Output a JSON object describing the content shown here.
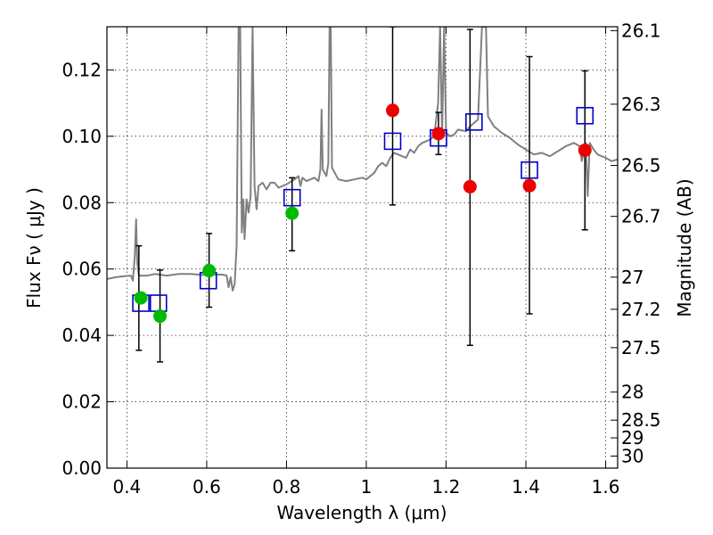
{
  "chart_data": {
    "type": "scatter",
    "title": "",
    "xlabel": "Wavelength  λ (μm)",
    "ylabel": "Flux  Fν  ( μJy )",
    "ylabel_right": "Magnitude (AB)",
    "xlim": [
      0.35,
      1.63
    ],
    "ylim": [
      0.0,
      0.133
    ],
    "grid": true,
    "x_ticks": [
      0.4,
      0.6,
      0.8,
      1.0,
      1.2,
      1.4,
      1.6
    ],
    "x_tick_labels": [
      "0.4",
      "0.6",
      "0.8",
      "1",
      "1.2",
      "1.4",
      "1.6"
    ],
    "y_ticks": [
      0.0,
      0.02,
      0.04,
      0.06,
      0.08,
      0.1,
      0.12
    ],
    "y_tick_labels": [
      "0.00",
      "0.02",
      "0.04",
      "0.06",
      "0.08",
      "0.10",
      "0.12"
    ],
    "right_ticks": [
      26.1,
      26.3,
      26.5,
      26.7,
      27,
      27.2,
      27.5,
      28,
      28.5,
      29,
      30
    ],
    "right_tick_labels": [
      "26.1",
      "26.3",
      "26.5",
      "26.7",
      "27",
      "27.2",
      "27.5",
      "28",
      "28.5",
      "29",
      "30"
    ],
    "colors": {
      "spectrum": "#808080",
      "observed_green": "#00bb00",
      "observed_red": "#ee0000",
      "model": "#0000cc",
      "errorbar": "#000000"
    },
    "series": [
      {
        "name": "model spectrum",
        "type": "line",
        "points": [
          [
            0.35,
            0.057
          ],
          [
            0.37,
            0.0575
          ],
          [
            0.39,
            0.0578
          ],
          [
            0.41,
            0.058
          ],
          [
            0.415,
            0.0565
          ],
          [
            0.42,
            0.064
          ],
          [
            0.423,
            0.075
          ],
          [
            0.426,
            0.062
          ],
          [
            0.43,
            0.058
          ],
          [
            0.45,
            0.058
          ],
          [
            0.47,
            0.0585
          ],
          [
            0.5,
            0.058
          ],
          [
            0.53,
            0.0585
          ],
          [
            0.56,
            0.0585
          ],
          [
            0.59,
            0.0582
          ],
          [
            0.6,
            0.0585
          ],
          [
            0.62,
            0.0583
          ],
          [
            0.64,
            0.0583
          ],
          [
            0.65,
            0.058
          ],
          [
            0.655,
            0.0545
          ],
          [
            0.66,
            0.0575
          ],
          [
            0.665,
            0.0535
          ],
          [
            0.67,
            0.0555
          ],
          [
            0.675,
            0.067
          ],
          [
            0.68,
            0.133
          ],
          [
            0.684,
            0.133
          ],
          [
            0.688,
            0.071
          ],
          [
            0.692,
            0.081
          ],
          [
            0.695,
            0.069
          ],
          [
            0.7,
            0.081
          ],
          [
            0.705,
            0.077
          ],
          [
            0.71,
            0.082
          ],
          [
            0.715,
            0.133
          ],
          [
            0.72,
            0.085
          ],
          [
            0.725,
            0.078
          ],
          [
            0.73,
            0.085
          ],
          [
            0.74,
            0.086
          ],
          [
            0.75,
            0.084
          ],
          [
            0.76,
            0.086
          ],
          [
            0.77,
            0.086
          ],
          [
            0.78,
            0.0845
          ],
          [
            0.8,
            0.0855
          ],
          [
            0.82,
            0.087
          ],
          [
            0.83,
            0.088
          ],
          [
            0.835,
            0.085
          ],
          [
            0.84,
            0.0875
          ],
          [
            0.85,
            0.0865
          ],
          [
            0.86,
            0.087
          ],
          [
            0.87,
            0.0875
          ],
          [
            0.88,
            0.0865
          ],
          [
            0.885,
            0.09
          ],
          [
            0.888,
            0.108
          ],
          [
            0.891,
            0.09
          ],
          [
            0.9,
            0.088
          ],
          [
            0.905,
            0.092
          ],
          [
            0.908,
            0.133
          ],
          [
            0.911,
            0.133
          ],
          [
            0.914,
            0.0905
          ],
          [
            0.93,
            0.087
          ],
          [
            0.95,
            0.0865
          ],
          [
            0.97,
            0.087
          ],
          [
            0.99,
            0.0875
          ],
          [
            1.0,
            0.087
          ],
          [
            1.02,
            0.089
          ],
          [
            1.03,
            0.091
          ],
          [
            1.04,
            0.092
          ],
          [
            1.05,
            0.091
          ],
          [
            1.06,
            0.0935
          ],
          [
            1.07,
            0.095
          ],
          [
            1.08,
            0.0945
          ],
          [
            1.09,
            0.094
          ],
          [
            1.1,
            0.0935
          ],
          [
            1.11,
            0.096
          ],
          [
            1.12,
            0.095
          ],
          [
            1.13,
            0.097
          ],
          [
            1.14,
            0.098
          ],
          [
            1.15,
            0.0985
          ],
          [
            1.16,
            0.099
          ],
          [
            1.17,
            0.1
          ],
          [
            1.18,
            0.11
          ],
          [
            1.185,
            0.133
          ],
          [
            1.19,
            0.1
          ],
          [
            1.195,
            0.133
          ],
          [
            1.2,
            0.101
          ],
          [
            1.21,
            0.1
          ],
          [
            1.22,
            0.1005
          ],
          [
            1.23,
            0.102
          ],
          [
            1.25,
            0.1015
          ],
          [
            1.26,
            0.103
          ],
          [
            1.27,
            0.104
          ],
          [
            1.28,
            0.105
          ],
          [
            1.29,
            0.133
          ],
          [
            1.3,
            0.133
          ],
          [
            1.305,
            0.106
          ],
          [
            1.32,
            0.103
          ],
          [
            1.34,
            0.101
          ],
          [
            1.36,
            0.0995
          ],
          [
            1.38,
            0.0975
          ],
          [
            1.4,
            0.096
          ],
          [
            1.42,
            0.0945
          ],
          [
            1.44,
            0.095
          ],
          [
            1.46,
            0.094
          ],
          [
            1.48,
            0.0955
          ],
          [
            1.5,
            0.097
          ],
          [
            1.52,
            0.098
          ],
          [
            1.535,
            0.097
          ],
          [
            1.54,
            0.0925
          ],
          [
            1.545,
            0.095
          ],
          [
            1.55,
            0.098
          ],
          [
            1.555,
            0.082
          ],
          [
            1.56,
            0.098
          ],
          [
            1.57,
            0.096
          ],
          [
            1.58,
            0.0945
          ],
          [
            1.6,
            0.0935
          ],
          [
            1.615,
            0.0925
          ],
          [
            1.63,
            0.093
          ]
        ]
      },
      {
        "name": "observed (green)",
        "type": "scatter",
        "points": [
          {
            "x": 0.435,
            "y": 0.0513
          },
          {
            "x": 0.483,
            "y": 0.0458
          },
          {
            "x": 0.606,
            "y": 0.0595
          },
          {
            "x": 0.814,
            "y": 0.0768
          }
        ]
      },
      {
        "name": "observed (red)",
        "type": "scatter",
        "points": [
          {
            "x": 1.066,
            "y": 0.1078
          },
          {
            "x": 1.181,
            "y": 0.1008
          },
          {
            "x": 1.26,
            "y": 0.0848
          },
          {
            "x": 1.409,
            "y": 0.0851
          },
          {
            "x": 1.548,
            "y": 0.0958
          }
        ]
      },
      {
        "name": "error bars",
        "type": "errorbar",
        "points": [
          {
            "x": 0.43,
            "ylo": 0.0355,
            "yhi": 0.067
          },
          {
            "x": 0.483,
            "ylo": 0.032,
            "yhi": 0.0597
          },
          {
            "x": 0.606,
            "ylo": 0.0485,
            "yhi": 0.0707
          },
          {
            "x": 0.814,
            "ylo": 0.0655,
            "yhi": 0.0875
          },
          {
            "x": 1.066,
            "ylo": 0.0793,
            "yhi": 0.133
          },
          {
            "x": 1.181,
            "ylo": 0.0945,
            "yhi": 0.1072
          },
          {
            "x": 1.26,
            "ylo": 0.037,
            "yhi": 0.1322
          },
          {
            "x": 1.409,
            "ylo": 0.0465,
            "yhi": 0.124
          },
          {
            "x": 1.548,
            "ylo": 0.0718,
            "yhi": 0.1197
          }
        ]
      },
      {
        "name": "model photometry",
        "type": "scatter",
        "marker": "open-square",
        "points": [
          {
            "x": 0.435,
            "y": 0.0497
          },
          {
            "x": 0.479,
            "y": 0.0497
          },
          {
            "x": 0.604,
            "y": 0.0565
          },
          {
            "x": 0.814,
            "y": 0.0815
          },
          {
            "x": 1.066,
            "y": 0.0985
          },
          {
            "x": 1.181,
            "y": 0.0995
          },
          {
            "x": 1.27,
            "y": 0.1043
          },
          {
            "x": 1.409,
            "y": 0.0898
          },
          {
            "x": 1.548,
            "y": 0.1062
          }
        ]
      }
    ]
  }
}
